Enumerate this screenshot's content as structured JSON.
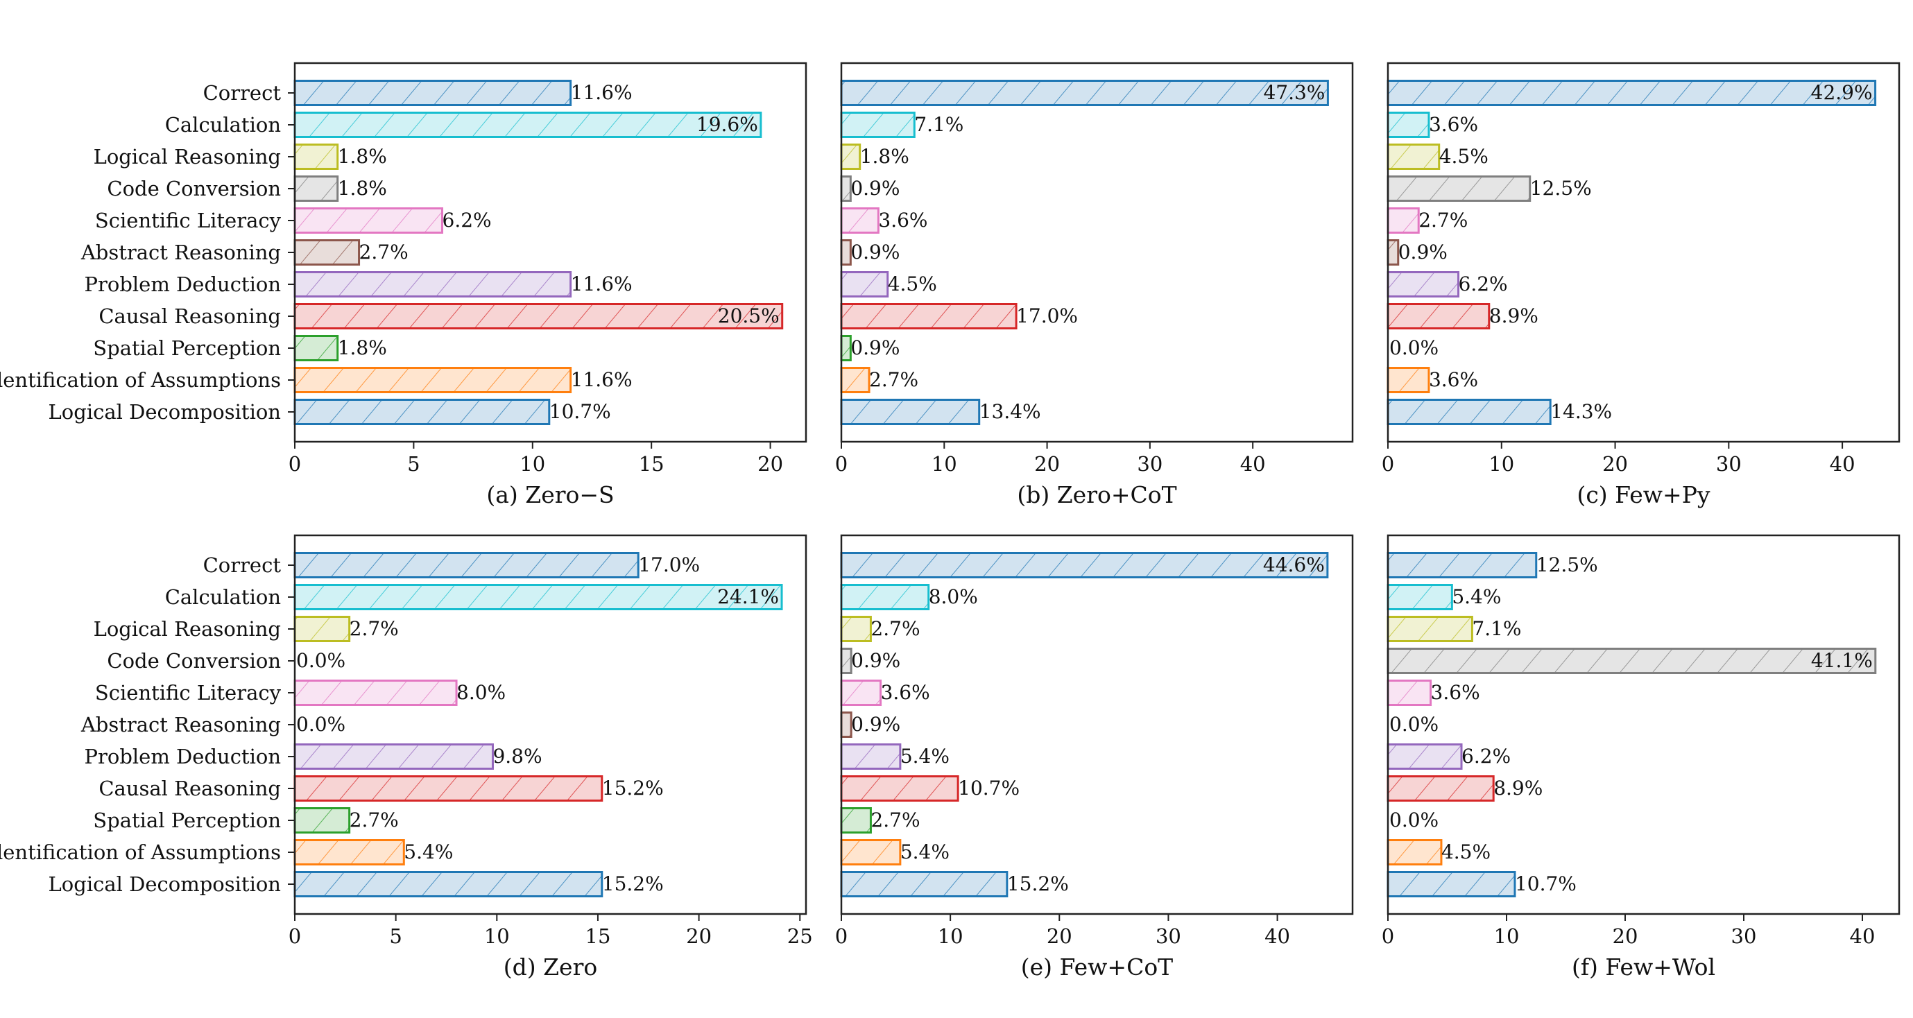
{
  "chart_data": [
    {
      "type": "bar",
      "orientation": "horizontal",
      "title": "(a) Zero−S",
      "categories": [
        "Correct",
        "Calculation",
        "Logical Reasoning",
        "Code Conversion",
        "Scientific Literacy",
        "Abstract Reasoning",
        "Problem Deduction",
        "Causal Reasoning",
        "Spatial Perception",
        "Identification of Assumptions",
        "Logical Decomposition"
      ],
      "values": [
        11.6,
        19.6,
        1.8,
        1.8,
        6.2,
        2.7,
        11.6,
        20.5,
        1.8,
        11.6,
        10.7
      ],
      "labels": [
        "11.6%",
        "19.6%",
        "1.8%",
        "1.8%",
        "6.2%",
        "2.7%",
        "11.6%",
        "20.5%",
        "1.8%",
        "11.6%",
        "10.7%"
      ],
      "xlim": [
        0,
        21.5
      ],
      "xticks": [
        0,
        5,
        10,
        15,
        20
      ],
      "show_categories": true
    },
    {
      "type": "bar",
      "orientation": "horizontal",
      "title": "(b) Zero+CoT",
      "categories": [
        "Correct",
        "Calculation",
        "Logical Reasoning",
        "Code Conversion",
        "Scientific Literacy",
        "Abstract Reasoning",
        "Problem Deduction",
        "Causal Reasoning",
        "Spatial Perception",
        "Identification of Assumptions",
        "Logical Decomposition"
      ],
      "values": [
        47.3,
        7.1,
        1.8,
        0.9,
        3.6,
        0.9,
        4.5,
        17.0,
        0.9,
        2.7,
        13.4
      ],
      "labels": [
        "47.3%",
        "7.1%",
        "1.8%",
        "0.9%",
        "3.6%",
        "0.9%",
        "4.5%",
        "17.0%",
        "0.9%",
        "2.7%",
        "13.4%"
      ],
      "xlim": [
        0,
        49.7
      ],
      "xticks": [
        0,
        10,
        20,
        30,
        40
      ],
      "show_categories": false
    },
    {
      "type": "bar",
      "orientation": "horizontal",
      "title": "(c) Few+Py",
      "categories": [
        "Correct",
        "Calculation",
        "Logical Reasoning",
        "Code Conversion",
        "Scientific Literacy",
        "Abstract Reasoning",
        "Problem Deduction",
        "Causal Reasoning",
        "Spatial Perception",
        "Identification of Assumptions",
        "Logical Decomposition"
      ],
      "values": [
        42.9,
        3.6,
        4.5,
        12.5,
        2.7,
        0.9,
        6.2,
        8.9,
        0.0,
        3.6,
        14.3
      ],
      "labels": [
        "42.9%",
        "3.6%",
        "4.5%",
        "12.5%",
        "2.7%",
        "0.9%",
        "6.2%",
        "8.9%",
        "0.0%",
        "3.6%",
        "14.3%"
      ],
      "xlim": [
        0,
        45.0
      ],
      "xticks": [
        0,
        10,
        20,
        30,
        40
      ],
      "show_categories": false
    },
    {
      "type": "bar",
      "orientation": "horizontal",
      "title": "(d) Zero",
      "categories": [
        "Correct",
        "Calculation",
        "Logical Reasoning",
        "Code Conversion",
        "Scientific Literacy",
        "Abstract Reasoning",
        "Problem Deduction",
        "Causal Reasoning",
        "Spatial Perception",
        "Identification of Assumptions",
        "Logical Decomposition"
      ],
      "values": [
        17.0,
        24.1,
        2.7,
        0.0,
        8.0,
        0.0,
        9.8,
        15.2,
        2.7,
        5.4,
        15.2
      ],
      "labels": [
        "17.0%",
        "24.1%",
        "2.7%",
        "0.0%",
        "8.0%",
        "0.0%",
        "9.8%",
        "15.2%",
        "2.7%",
        "5.4%",
        "15.2%"
      ],
      "xlim": [
        0,
        25.3
      ],
      "xticks": [
        0,
        5,
        10,
        15,
        20,
        25
      ],
      "show_categories": true
    },
    {
      "type": "bar",
      "orientation": "horizontal",
      "title": "(e) Few+CoT",
      "categories": [
        "Correct",
        "Calculation",
        "Logical Reasoning",
        "Code Conversion",
        "Scientific Literacy",
        "Abstract Reasoning",
        "Problem Deduction",
        "Causal Reasoning",
        "Spatial Perception",
        "Identification of Assumptions",
        "Logical Decomposition"
      ],
      "values": [
        44.6,
        8.0,
        2.7,
        0.9,
        3.6,
        0.9,
        5.4,
        10.7,
        2.7,
        5.4,
        15.2
      ],
      "labels": [
        "44.6%",
        "8.0%",
        "2.7%",
        "0.9%",
        "3.6%",
        "0.9%",
        "5.4%",
        "10.7%",
        "2.7%",
        "5.4%",
        "15.2%"
      ],
      "xlim": [
        0,
        46.9
      ],
      "xticks": [
        0,
        10,
        20,
        30,
        40
      ],
      "show_categories": false
    },
    {
      "type": "bar",
      "orientation": "horizontal",
      "title": "(f) Few+Wol",
      "categories": [
        "Correct",
        "Calculation",
        "Logical Reasoning",
        "Code Conversion",
        "Scientific Literacy",
        "Abstract Reasoning",
        "Problem Deduction",
        "Causal Reasoning",
        "Spatial Perception",
        "Identification of Assumptions",
        "Logical Decomposition"
      ],
      "values": [
        12.5,
        5.4,
        7.1,
        41.1,
        3.6,
        0.0,
        6.2,
        8.9,
        0.0,
        4.5,
        10.7
      ],
      "labels": [
        "12.5%",
        "5.4%",
        "7.1%",
        "41.1%",
        "3.6%",
        "0.0%",
        "6.2%",
        "8.9%",
        "0.0%",
        "4.5%",
        "10.7%"
      ],
      "xlim": [
        0,
        43.1
      ],
      "xticks": [
        0,
        10,
        20,
        30,
        40
      ],
      "show_categories": false
    }
  ],
  "bar_colors": {
    "Correct": {
      "edge": "#1f77b4",
      "fill": "#d2e3f0"
    },
    "Calculation": {
      "edge": "#17becf",
      "fill": "#d1f2f5"
    },
    "Logical Reasoning": {
      "edge": "#bcbd22",
      "fill": "#f1f2d3"
    },
    "Code Conversion": {
      "edge": "#7f7f7f",
      "fill": "#e5e5e5"
    },
    "Scientific Literacy": {
      "edge": "#e377c2",
      "fill": "#f9e4f3"
    },
    "Abstract Reasoning": {
      "edge": "#8c564b",
      "fill": "#e8ddda"
    },
    "Problem Deduction": {
      "edge": "#9467bd",
      "fill": "#e9e1f2"
    },
    "Causal Reasoning": {
      "edge": "#d62728",
      "fill": "#f7d4d4"
    },
    "Spatial Perception": {
      "edge": "#2ca02c",
      "fill": "#d5ecd5"
    },
    "Identification of Assumptions": {
      "edge": "#ff7f0e",
      "fill": "#ffe5cf"
    },
    "Logical Decomposition": {
      "edge": "#1f77b4",
      "fill": "#d2e3f0"
    }
  },
  "hatch": "diagonal"
}
